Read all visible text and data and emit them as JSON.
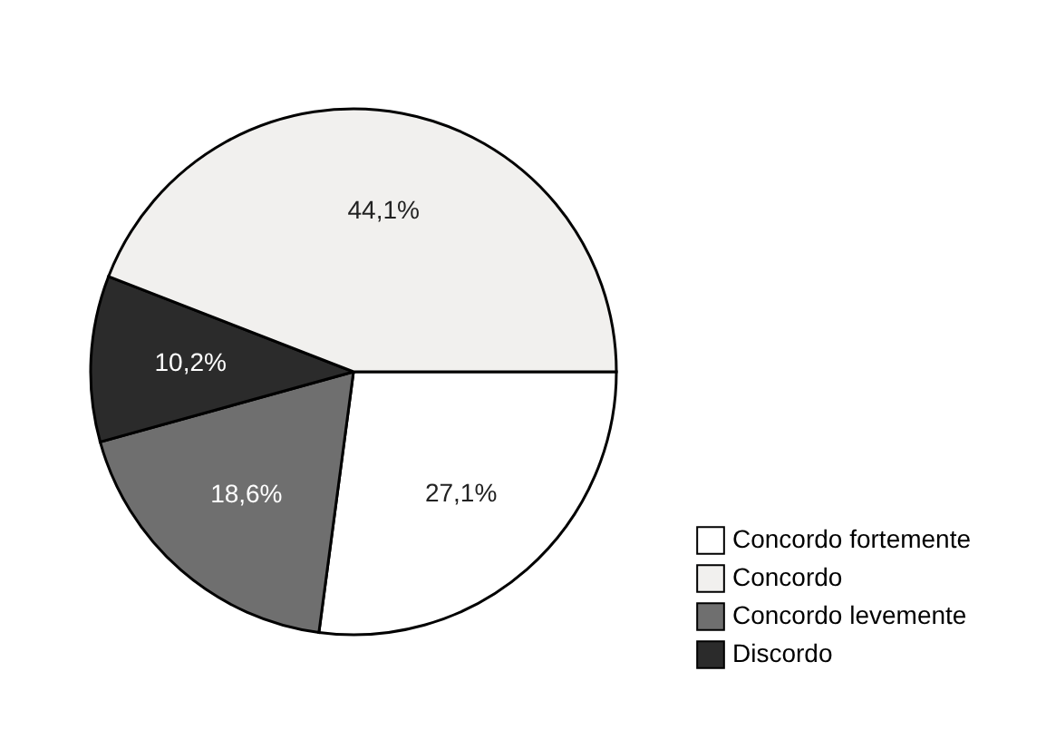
{
  "chart_data": {
    "type": "pie",
    "categories": [
      "Concordo fortemente",
      "Concordo",
      "Concordo levemente",
      "Discordo"
    ],
    "values": [
      27.1,
      44.1,
      18.6,
      10.2
    ],
    "colors": [
      "#ffffff",
      "#f1f0ee",
      "#6f6f6f",
      "#2b2b2b"
    ],
    "value_labels": [
      "27,1%",
      "44,1%",
      "18,6%",
      "10,2%"
    ],
    "legend": "bottom right"
  }
}
